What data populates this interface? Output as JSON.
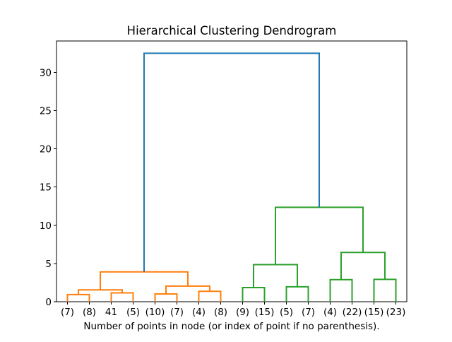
{
  "figure": {
    "background": "#ffffff",
    "spine_color": "#000000",
    "text_color": "#000000"
  },
  "chart_data": {
    "type": "dendrogram",
    "title": "Hierarchical Clustering Dendrogram",
    "xlabel": "Number of points in node (or index of point if no parenthesis).",
    "leaf_labels": [
      "(7)",
      "(8)",
      "41",
      "(5)",
      "(10)",
      "(7)",
      "(4)",
      "(8)",
      "(9)",
      "(15)",
      "(5)",
      "(7)",
      "(4)",
      "(22)",
      "(15)",
      "(23)"
    ],
    "yticks": [
      0,
      5,
      10,
      15,
      20,
      25,
      30
    ],
    "ylim": [
      0,
      34.1
    ],
    "xlim": [
      0,
      160
    ],
    "leaf_x_start": 5,
    "leaf_x_step": 10,
    "grid": false,
    "legend": null,
    "colors": {
      "above_threshold_link": "#1f77b4",
      "cluster_1_link": "#ff7f0e",
      "cluster_2_link": "#2ca02c"
    },
    "merges": [
      {
        "id": "M0",
        "left": "L0",
        "right": "L1",
        "height": 0.93,
        "color": "#ff7f0e"
      },
      {
        "id": "M1",
        "left": "L2",
        "right": "L3",
        "height": 1.15,
        "color": "#ff7f0e"
      },
      {
        "id": "M2",
        "left": "M0",
        "right": "M1",
        "height": 1.55,
        "color": "#ff7f0e"
      },
      {
        "id": "M3",
        "left": "L4",
        "right": "L5",
        "height": 1.02,
        "color": "#ff7f0e"
      },
      {
        "id": "M4",
        "left": "L6",
        "right": "L7",
        "height": 1.36,
        "color": "#ff7f0e"
      },
      {
        "id": "M5",
        "left": "M3",
        "right": "M4",
        "height": 2.04,
        "color": "#ff7f0e"
      },
      {
        "id": "M6",
        "left": "M2",
        "right": "M5",
        "height": 3.9,
        "color": "#ff7f0e"
      },
      {
        "id": "M7",
        "left": "L8",
        "right": "L9",
        "height": 1.85,
        "color": "#2ca02c"
      },
      {
        "id": "M8",
        "left": "L10",
        "right": "L11",
        "height": 1.95,
        "color": "#2ca02c"
      },
      {
        "id": "M9",
        "left": "M7",
        "right": "M8",
        "height": 4.85,
        "color": "#2ca02c"
      },
      {
        "id": "M10",
        "left": "L12",
        "right": "L13",
        "height": 2.89,
        "color": "#2ca02c"
      },
      {
        "id": "M11",
        "left": "L14",
        "right": "L15",
        "height": 2.92,
        "color": "#2ca02c"
      },
      {
        "id": "M12",
        "left": "M10",
        "right": "M11",
        "height": 6.45,
        "color": "#2ca02c"
      },
      {
        "id": "M13",
        "left": "M9",
        "right": "M12",
        "height": 12.35,
        "color": "#2ca02c"
      },
      {
        "id": "M14",
        "left": "M6",
        "right": "M13",
        "height": 32.5,
        "color": "#1f77b4"
      }
    ]
  }
}
